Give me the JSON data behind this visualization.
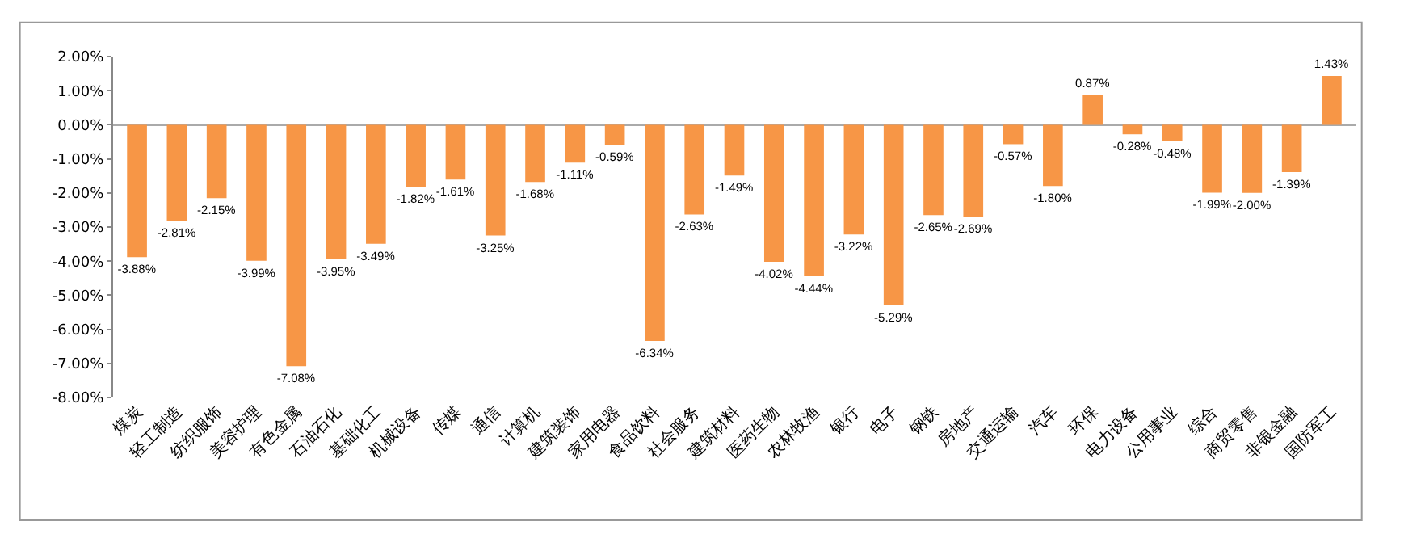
{
  "chart_data": {
    "type": "bar",
    "categories": [
      "煤炭",
      "轻工制造",
      "纺织服饰",
      "美容护理",
      "有色金属",
      "石油石化",
      "基础化工",
      "机械设备",
      "传媒",
      "通信",
      "计算机",
      "建筑装饰",
      "家用电器",
      "食品饮料",
      "社会服务",
      "建筑材料",
      "医药生物",
      "农林牧渔",
      "银行",
      "电子",
      "钢铁",
      "房地产",
      "交通运输",
      "汽车",
      "环保",
      "电力设备",
      "公用事业",
      "综合",
      "商贸零售",
      "非银金融",
      "国防军工"
    ],
    "values": [
      -3.88,
      -2.81,
      -2.15,
      -3.99,
      -7.08,
      -3.95,
      -3.49,
      -1.82,
      -1.61,
      -3.25,
      -1.68,
      -1.11,
      -0.59,
      -6.34,
      -2.63,
      -1.49,
      -4.02,
      -4.44,
      -3.22,
      -5.29,
      -2.65,
      -2.69,
      -0.57,
      -1.8,
      0.87,
      -0.28,
      -0.48,
      -1.99,
      -2.0,
      -1.39,
      1.43
    ],
    "value_labels": [
      "-3.88%",
      "-2.81%",
      "-2.15%",
      "-3.99%",
      "-7.08%",
      "-3.95%",
      "-3.49%",
      "-1.82%",
      "-1.61%",
      "-3.25%",
      "-1.68%",
      "-1.11%",
      "-0.59%",
      "-6.34%",
      "-2.63%",
      "-1.49%",
      "-4.02%",
      "-4.44%",
      "-3.22%",
      "-5.29%",
      "-2.65%",
      "-2.69%",
      "-0.57%",
      "-1.80%",
      "0.87%",
      "-0.28%",
      "-0.48%",
      "-1.99%",
      "-2.00%",
      "-1.39%",
      "1.43%"
    ],
    "color": "#f79646",
    "ylim": [
      -8,
      2
    ],
    "yticks": [
      {
        "value": 2,
        "label": "2.00%"
      },
      {
        "value": 1,
        "label": "1.00%"
      },
      {
        "value": 0,
        "label": "0.00%"
      },
      {
        "value": -1,
        "label": "-1.00%"
      },
      {
        "value": -2,
        "label": "-2.00%"
      },
      {
        "value": -3,
        "label": "-3.00%"
      },
      {
        "value": -4,
        "label": "-4.00%"
      },
      {
        "value": -5,
        "label": "-5.00%"
      },
      {
        "value": -6,
        "label": "-6.00%"
      },
      {
        "value": -7,
        "label": "-7.00%"
      },
      {
        "value": -8,
        "label": "-8.00%"
      }
    ],
    "ref_lines": [
      {
        "axis": "y",
        "value": 0,
        "label": null,
        "color": "#aaaaaa"
      }
    ]
  }
}
